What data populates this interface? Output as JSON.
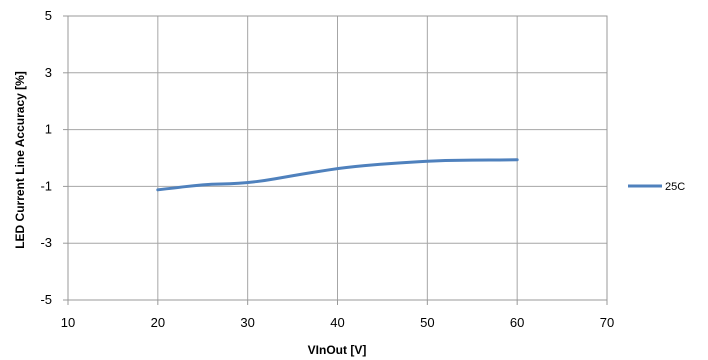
{
  "chart_data": {
    "type": "line",
    "title": "",
    "xlabel": "VInOut  [V]",
    "ylabel": "LED Current Line Accuracy  [%]",
    "xlim": [
      10,
      70
    ],
    "ylim": [
      -5,
      5
    ],
    "xticks": [
      10,
      20,
      30,
      40,
      50,
      60,
      70
    ],
    "yticks": [
      -5,
      -3,
      -1,
      1,
      3,
      5
    ],
    "grid": true,
    "legend_position": "right",
    "series": [
      {
        "name": "25C",
        "color": "#4F81BD",
        "x": [
          20,
          22,
          24,
          26,
          28,
          30,
          32,
          34,
          36,
          38,
          40,
          42,
          44,
          46,
          48,
          50,
          52,
          54,
          56,
          58,
          60
        ],
        "y": [
          -1.12,
          -1.05,
          -0.97,
          -0.92,
          -0.91,
          -0.87,
          -0.79,
          -0.68,
          -0.57,
          -0.47,
          -0.37,
          -0.3,
          -0.24,
          -0.19,
          -0.15,
          -0.11,
          -0.09,
          -0.08,
          -0.07,
          -0.07,
          -0.06
        ]
      }
    ]
  }
}
